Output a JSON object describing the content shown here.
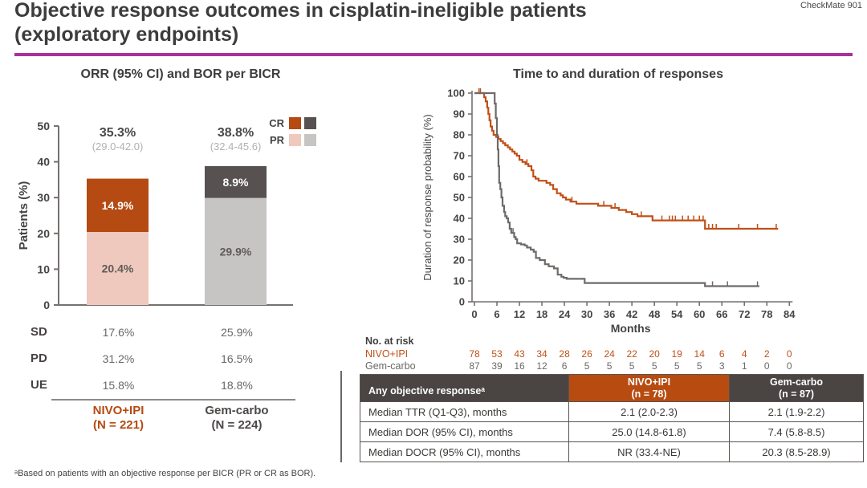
{
  "header": {
    "title_line1": "Objective response outcomes in cisplatin-ineligible patients",
    "title_line2": "(exploratory endpoints)",
    "watermark": "CheckMate 901"
  },
  "colors": {
    "accent_magenta": "#ab2f9e",
    "nivo_orange": "#b54a12",
    "nivo_pr_pink": "#efc9bd",
    "gem_dark_gray": "#575251",
    "gem_pr_gray": "#c7c5c4",
    "km_nivo": "#c05018",
    "km_gem": "#6e6a68",
    "table_header_dark": "#4a4442",
    "table_header_orange": "#b84b10",
    "gem_text": "#4c4947"
  },
  "chart_data": [
    {
      "type": "bar",
      "title": "ORR (95% CI) and BOR per BICR",
      "ylabel": "Patients (%)",
      "ylim": [
        0,
        50
      ],
      "yticks": [
        0,
        10,
        20,
        30,
        40,
        50
      ],
      "stacked": true,
      "categories": [
        "NIVO+IPI",
        "Gem-carbo"
      ],
      "category_sublabels": [
        "(N = 221)",
        "(N = 224)"
      ],
      "series": [
        {
          "name": "PR",
          "values": [
            20.4,
            29.9
          ],
          "labels": [
            "20.4%",
            "29.9%"
          ],
          "colors": [
            "#efc9bd",
            "#c7c5c4"
          ],
          "label_colors": [
            "#5f5b59",
            "#5f5b59"
          ]
        },
        {
          "name": "CR",
          "values": [
            14.9,
            8.9
          ],
          "labels": [
            "14.9%",
            "8.9%"
          ],
          "colors": [
            "#b54a12",
            "#575251"
          ],
          "label_colors": [
            "#ffffff",
            "#ffffff"
          ]
        }
      ],
      "totals": [
        {
          "value": 35.3,
          "label": "35.3%",
          "ci": "(29.0-42.0)"
        },
        {
          "value": 38.8,
          "label": "38.8%",
          "ci": "(32.4-45.6)"
        }
      ],
      "legend": [
        {
          "label": "CR",
          "swatches": [
            "#b54a12",
            "#575251"
          ]
        },
        {
          "label": "PR",
          "swatches": [
            "#efc9bd",
            "#c7c5c4"
          ]
        }
      ]
    },
    {
      "type": "line",
      "subtype": "kaplan-meier-step",
      "title": "Time to and duration of responses",
      "xlabel": "Months",
      "ylabel": "Duration of response probability (%)",
      "xlim": [
        0,
        84
      ],
      "ylim": [
        0,
        100
      ],
      "xticks": [
        0,
        6,
        12,
        18,
        24,
        30,
        36,
        42,
        48,
        54,
        60,
        66,
        72,
        78,
        84
      ],
      "yticks": [
        0,
        10,
        20,
        30,
        40,
        50,
        60,
        70,
        80,
        90,
        100
      ],
      "series": [
        {
          "name": "NIVO+IPI",
          "color": "#c05018",
          "steps": [
            [
              0,
              100
            ],
            [
              2.6,
              100
            ],
            [
              2.6,
              98
            ],
            [
              3.0,
              98
            ],
            [
              3.0,
              96
            ],
            [
              3.4,
              96
            ],
            [
              3.4,
              93
            ],
            [
              3.7,
              93
            ],
            [
              3.7,
              90
            ],
            [
              4.0,
              90
            ],
            [
              4.0,
              87
            ],
            [
              4.3,
              87
            ],
            [
              4.3,
              84
            ],
            [
              4.7,
              84
            ],
            [
              4.7,
              82
            ],
            [
              5.1,
              82
            ],
            [
              5.1,
              80
            ],
            [
              5.8,
              80
            ],
            [
              5.8,
              79
            ],
            [
              6.4,
              79
            ],
            [
              6.4,
              78
            ],
            [
              7.0,
              78
            ],
            [
              7.0,
              77
            ],
            [
              7.6,
              77
            ],
            [
              7.6,
              76
            ],
            [
              8.2,
              76
            ],
            [
              8.2,
              75
            ],
            [
              8.9,
              75
            ],
            [
              8.9,
              74
            ],
            [
              9.5,
              74
            ],
            [
              9.5,
              73
            ],
            [
              10.1,
              73
            ],
            [
              10.1,
              72
            ],
            [
              10.7,
              72
            ],
            [
              10.7,
              71
            ],
            [
              11.3,
              71
            ],
            [
              11.3,
              70
            ],
            [
              12.0,
              70
            ],
            [
              12.0,
              68
            ],
            [
              12.8,
              68
            ],
            [
              12.8,
              67
            ],
            [
              13.6,
              67
            ],
            [
              13.6,
              66
            ],
            [
              14.4,
              66
            ],
            [
              14.4,
              65
            ],
            [
              15.2,
              65
            ],
            [
              15.2,
              63
            ],
            [
              15.7,
              63
            ],
            [
              15.7,
              60
            ],
            [
              16.3,
              60
            ],
            [
              16.3,
              59
            ],
            [
              17.1,
              59
            ],
            [
              17.1,
              58
            ],
            [
              19.2,
              58
            ],
            [
              19.2,
              57
            ],
            [
              20.2,
              57
            ],
            [
              20.2,
              56
            ],
            [
              21.0,
              56
            ],
            [
              21.0,
              54
            ],
            [
              22.0,
              54
            ],
            [
              22.0,
              52
            ],
            [
              23.0,
              52
            ],
            [
              23.0,
              51
            ],
            [
              23.6,
              51
            ],
            [
              23.6,
              50
            ],
            [
              24.4,
              50
            ],
            [
              24.4,
              49
            ],
            [
              25.6,
              49
            ],
            [
              25.6,
              48
            ],
            [
              27.2,
              48
            ],
            [
              27.2,
              47
            ],
            [
              33.0,
              47
            ],
            [
              33.0,
              46
            ],
            [
              36.5,
              46
            ],
            [
              36.5,
              45
            ],
            [
              38.5,
              45
            ],
            [
              38.5,
              44
            ],
            [
              40.5,
              44
            ],
            [
              40.5,
              43
            ],
            [
              42.0,
              43
            ],
            [
              42.0,
              42
            ],
            [
              43.5,
              42
            ],
            [
              43.5,
              41
            ],
            [
              47.5,
              41
            ],
            [
              47.5,
              39
            ],
            [
              61.5,
              39
            ],
            [
              61.5,
              35
            ],
            [
              81.0,
              35
            ]
          ],
          "censors": [
            [
              1.2,
              100
            ],
            [
              1.6,
              100
            ],
            [
              14.0,
              66
            ],
            [
              26.0,
              48
            ],
            [
              34.5,
              46
            ],
            [
              37.5,
              45
            ],
            [
              44.5,
              41
            ],
            [
              50.0,
              39
            ],
            [
              52.0,
              39
            ],
            [
              52.8,
              39
            ],
            [
              53.6,
              39
            ],
            [
              55.5,
              39
            ],
            [
              57.0,
              39
            ],
            [
              58.5,
              39
            ],
            [
              60.0,
              39
            ],
            [
              61.0,
              39
            ],
            [
              62.5,
              35
            ],
            [
              63.5,
              35
            ],
            [
              64.5,
              35
            ],
            [
              70.5,
              35
            ],
            [
              75.5,
              35
            ],
            [
              80.5,
              35
            ]
          ]
        },
        {
          "name": "Gem-carbo",
          "color": "#6e6a68",
          "steps": [
            [
              0,
              100
            ],
            [
              5.4,
              100
            ],
            [
              5.4,
              95
            ],
            [
              5.7,
              95
            ],
            [
              5.7,
              88
            ],
            [
              6.0,
              88
            ],
            [
              6.0,
              80
            ],
            [
              6.2,
              80
            ],
            [
              6.2,
              73
            ],
            [
              6.4,
              73
            ],
            [
              6.4,
              65
            ],
            [
              6.6,
              65
            ],
            [
              6.6,
              57
            ],
            [
              6.9,
              57
            ],
            [
              6.9,
              54
            ],
            [
              7.2,
              54
            ],
            [
              7.2,
              50
            ],
            [
              7.5,
              50
            ],
            [
              7.5,
              46
            ],
            [
              7.9,
              46
            ],
            [
              7.9,
              43
            ],
            [
              8.2,
              43
            ],
            [
              8.2,
              41
            ],
            [
              8.6,
              41
            ],
            [
              8.6,
              40
            ],
            [
              9.0,
              40
            ],
            [
              9.0,
              38
            ],
            [
              9.4,
              38
            ],
            [
              9.4,
              35
            ],
            [
              9.8,
              35
            ],
            [
              9.8,
              33
            ],
            [
              10.6,
              33
            ],
            [
              10.6,
              31
            ],
            [
              11.0,
              31
            ],
            [
              11.0,
              30
            ],
            [
              11.4,
              30
            ],
            [
              11.4,
              28
            ],
            [
              12.4,
              28
            ],
            [
              12.4,
              27.5
            ],
            [
              13.4,
              27.5
            ],
            [
              13.4,
              27
            ],
            [
              14.0,
              27
            ],
            [
              14.0,
              26
            ],
            [
              15.0,
              26
            ],
            [
              15.0,
              25
            ],
            [
              15.8,
              25
            ],
            [
              15.8,
              24
            ],
            [
              16.4,
              24
            ],
            [
              16.4,
              21
            ],
            [
              17.4,
              21
            ],
            [
              17.4,
              20
            ],
            [
              18.8,
              20
            ],
            [
              18.8,
              18
            ],
            [
              19.8,
              18
            ],
            [
              19.8,
              17
            ],
            [
              21.2,
              17
            ],
            [
              21.2,
              16
            ],
            [
              22.2,
              16
            ],
            [
              22.2,
              13
            ],
            [
              23.2,
              13
            ],
            [
              23.2,
              12
            ],
            [
              23.8,
              12
            ],
            [
              23.8,
              11.5
            ],
            [
              24.6,
              11.5
            ],
            [
              24.6,
              11
            ],
            [
              29.4,
              11
            ],
            [
              29.4,
              9
            ],
            [
              61.5,
              9
            ],
            [
              61.5,
              7.5
            ],
            [
              76.0,
              7.5
            ]
          ],
          "censors": [
            [
              10.3,
              33
            ],
            [
              63.5,
              7.5
            ],
            [
              67.5,
              7.5
            ],
            [
              75.5,
              7.5
            ]
          ]
        }
      ],
      "risk_table": {
        "label": "No. at risk",
        "rows": [
          {
            "name": "NIVO+IPI",
            "color": "#c05018",
            "values": [
              78,
              53,
              43,
              34,
              28,
              26,
              24,
              22,
              20,
              19,
              14,
              6,
              4,
              2,
              0
            ]
          },
          {
            "name": "Gem-carbo",
            "color": "#6b6866",
            "values": [
              87,
              39,
              16,
              12,
              6,
              5,
              5,
              5,
              5,
              5,
              5,
              3,
              1,
              0,
              0
            ]
          }
        ]
      }
    }
  ],
  "summary_table": {
    "rows": [
      {
        "label": "SD",
        "nivo": "17.6%",
        "gem": "25.9%"
      },
      {
        "label": "PD",
        "nivo": "31.2%",
        "gem": "16.5%"
      },
      {
        "label": "UE",
        "nivo": "15.8%",
        "gem": "18.8%"
      }
    ],
    "group1": {
      "name": "NIVO+IPI",
      "n": "(N = 221)"
    },
    "group2": {
      "name": "Gem-carbo",
      "n": "(N = 224)"
    }
  },
  "response_table": {
    "header": {
      "col1": "Any objective responseᵃ",
      "col2_line1": "NIVO+IPI",
      "col2_line2": "(n = 78)",
      "col3_line1": "Gem-carbo",
      "col3_line2": "(n = 87)"
    },
    "rows": [
      {
        "label": "Median TTR (Q1-Q3), months",
        "nivo": "2.1 (2.0-2.3)",
        "gem": "2.1 (1.9-2.2)"
      },
      {
        "label": "Median DOR (95% CI), months",
        "nivo": "25.0 (14.8-61.8)",
        "gem": "7.4 (5.8-8.5)"
      },
      {
        "label": "Median DOCR (95% CI), months",
        "nivo": "NR (33.4-NE)",
        "gem": "20.3 (8.5-28.9)"
      }
    ]
  },
  "footnote": "ᵃBased on patients with an objective response per BICR (PR or CR as BOR)."
}
